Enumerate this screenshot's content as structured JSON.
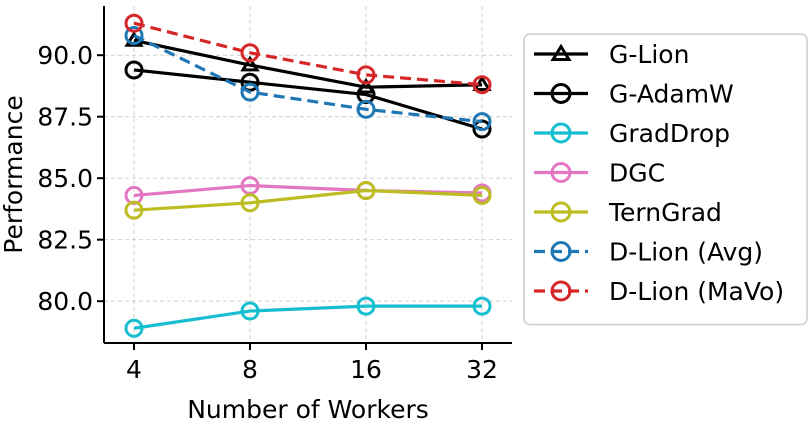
{
  "chart_data": {
    "type": "line",
    "title": "",
    "xlabel": "Number of Workers",
    "ylabel": "Performance",
    "categories": [
      "4",
      "8",
      "16",
      "32"
    ],
    "x_scale": "log2",
    "ylim": [
      78.3,
      92.0
    ],
    "yticks": [
      "80.0",
      "82.5",
      "85.0",
      "87.5",
      "90.0"
    ],
    "grid": true,
    "legend_position": "right, outside",
    "series": [
      {
        "name": "G-Lion",
        "color": "#000000",
        "linestyle": "solid",
        "marker": "triangle",
        "values": [
          90.6,
          89.6,
          88.7,
          88.8
        ]
      },
      {
        "name": "G-AdamW",
        "color": "#000000",
        "linestyle": "solid",
        "marker": "circle",
        "values": [
          89.4,
          88.9,
          88.4,
          87.0
        ]
      },
      {
        "name": "GradDrop",
        "color": "#17becf",
        "linestyle": "solid",
        "marker": "circle",
        "values": [
          78.9,
          79.6,
          79.8,
          79.8
        ]
      },
      {
        "name": "DGC",
        "color": "#e377c2",
        "linestyle": "solid",
        "marker": "circle",
        "values": [
          84.3,
          84.7,
          84.5,
          84.4
        ]
      },
      {
        "name": "TernGrad",
        "color": "#bcbd22",
        "linestyle": "solid",
        "marker": "circle",
        "values": [
          83.7,
          84.0,
          84.5,
          84.3
        ]
      },
      {
        "name": "D-Lion (Avg)",
        "color": "#1f77b4",
        "linestyle": "dashed",
        "marker": "circle",
        "values": [
          90.8,
          88.5,
          87.8,
          87.3
        ]
      },
      {
        "name": "D-Lion (MaVo)",
        "color": "#d62728",
        "linestyle": "dashed",
        "marker": "circle",
        "values": [
          91.3,
          90.1,
          89.2,
          88.8
        ]
      }
    ]
  }
}
